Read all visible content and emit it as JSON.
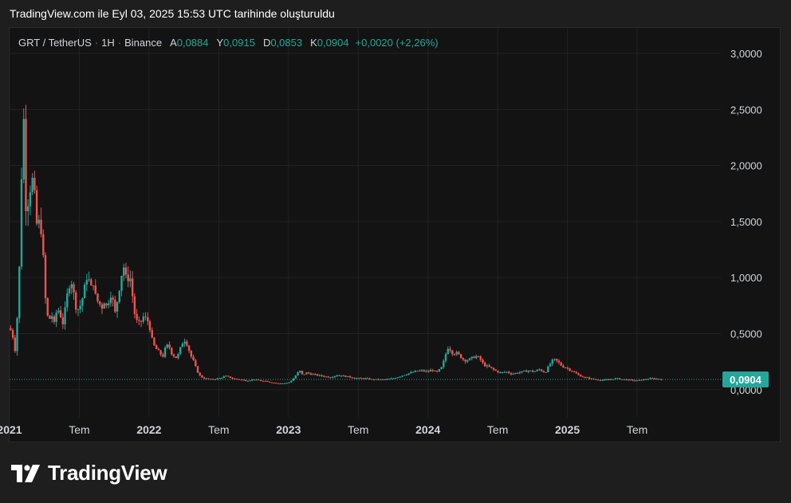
{
  "header": {
    "title": "TradingView.com ile Eyl 03, 2025 15:53 UTC tarihinde oluşturuldu"
  },
  "legend": {
    "symbol": "GRT / TetherUS",
    "interval": "1H",
    "exchange": "Binance",
    "open_label": "A",
    "open": "0,0884",
    "high_label": "Y",
    "high": "0,0915",
    "low_label": "D",
    "low": "0,0853",
    "close_label": "K",
    "close": "0,0904",
    "change": "+0,0020 (+2,26%)"
  },
  "footer": {
    "brand": "TradingView",
    "logo_icon": "tradingview-logo-icon"
  },
  "colors": {
    "up": "#26a69a",
    "down": "#ef5350",
    "background": "#131313",
    "grid": "#222222",
    "axis_text": "#d1d4dc"
  },
  "chart_data": {
    "type": "candlestick",
    "y_ticks": [
      "3,0000",
      "2,5000",
      "2,0000",
      "1,5000",
      "1,0000",
      "0,5000",
      "0,0000"
    ],
    "y_tick_values": [
      3.0,
      2.5,
      2.0,
      1.5,
      1.0,
      0.5,
      0.0
    ],
    "ylim": [
      -0.08,
      3.05
    ],
    "x_ticks": [
      {
        "label": "2021",
        "t": 2021.0,
        "bold": true
      },
      {
        "label": "Tem",
        "t": 2021.5,
        "bold": false
      },
      {
        "label": "2022",
        "t": 2022.0,
        "bold": true
      },
      {
        "label": "Tem",
        "t": 2022.5,
        "bold": false
      },
      {
        "label": "2023",
        "t": 2023.0,
        "bold": true
      },
      {
        "label": "Tem",
        "t": 2023.5,
        "bold": false
      },
      {
        "label": "2024",
        "t": 2024.0,
        "bold": true
      },
      {
        "label": "Tem",
        "t": 2024.5,
        "bold": false
      },
      {
        "label": "2025",
        "t": 2025.0,
        "bold": true
      },
      {
        "label": "Tem",
        "t": 2025.5,
        "bold": false
      }
    ],
    "xlim": [
      2021.0,
      2026.1
    ],
    "last_price": "0,0904",
    "last_price_value": 0.0904,
    "price_path": [
      [
        2021.0,
        0.55
      ],
      [
        2021.02,
        0.5
      ],
      [
        2021.04,
        0.35
      ],
      [
        2021.06,
        0.75
      ],
      [
        2021.08,
        1.4
      ],
      [
        2021.09,
        2.3
      ],
      [
        2021.1,
        2.5
      ],
      [
        2021.11,
        1.8
      ],
      [
        2021.12,
        1.6
      ],
      [
        2021.14,
        1.75
      ],
      [
        2021.16,
        1.9
      ],
      [
        2021.18,
        1.7
      ],
      [
        2021.2,
        1.4
      ],
      [
        2021.22,
        1.55
      ],
      [
        2021.24,
        1.2
      ],
      [
        2021.26,
        0.75
      ],
      [
        2021.28,
        0.6
      ],
      [
        2021.3,
        0.68
      ],
      [
        2021.32,
        0.58
      ],
      [
        2021.34,
        0.72
      ],
      [
        2021.36,
        0.7
      ],
      [
        2021.38,
        0.58
      ],
      [
        2021.4,
        0.72
      ],
      [
        2021.42,
        0.9
      ],
      [
        2021.44,
        1.0
      ],
      [
        2021.46,
        0.85
      ],
      [
        2021.48,
        0.72
      ],
      [
        2021.5,
        0.72
      ],
      [
        2021.53,
        0.85
      ],
      [
        2021.56,
        1.05
      ],
      [
        2021.58,
        0.88
      ],
      [
        2021.6,
        0.97
      ],
      [
        2021.62,
        0.8
      ],
      [
        2021.64,
        0.78
      ],
      [
        2021.66,
        0.73
      ],
      [
        2021.68,
        0.8
      ],
      [
        2021.7,
        0.72
      ],
      [
        2021.72,
        0.88
      ],
      [
        2021.74,
        0.8
      ],
      [
        2021.75,
        0.65
      ],
      [
        2021.76,
        0.7
      ],
      [
        2021.78,
        0.85
      ],
      [
        2021.8,
        1.02
      ],
      [
        2021.82,
        1.1
      ],
      [
        2021.84,
        0.95
      ],
      [
        2021.86,
        1.05
      ],
      [
        2021.88,
        0.85
      ],
      [
        2021.9,
        0.65
      ],
      [
        2021.92,
        0.58
      ],
      [
        2021.94,
        0.6
      ],
      [
        2021.96,
        0.65
      ],
      [
        2022.0,
        0.6
      ],
      [
        2022.02,
        0.45
      ],
      [
        2022.04,
        0.38
      ],
      [
        2022.06,
        0.35
      ],
      [
        2022.08,
        0.32
      ],
      [
        2022.1,
        0.3
      ],
      [
        2022.12,
        0.38
      ],
      [
        2022.14,
        0.4
      ],
      [
        2022.16,
        0.33
      ],
      [
        2022.18,
        0.3
      ],
      [
        2022.2,
        0.28
      ],
      [
        2022.22,
        0.35
      ],
      [
        2022.24,
        0.42
      ],
      [
        2022.26,
        0.45
      ],
      [
        2022.28,
        0.38
      ],
      [
        2022.3,
        0.3
      ],
      [
        2022.32,
        0.25
      ],
      [
        2022.34,
        0.18
      ],
      [
        2022.36,
        0.13
      ],
      [
        2022.38,
        0.11
      ],
      [
        2022.4,
        0.1
      ],
      [
        2022.45,
        0.09
      ],
      [
        2022.5,
        0.1
      ],
      [
        2022.55,
        0.12
      ],
      [
        2022.6,
        0.1
      ],
      [
        2022.65,
        0.09
      ],
      [
        2022.7,
        0.08
      ],
      [
        2022.75,
        0.09
      ],
      [
        2022.8,
        0.08
      ],
      [
        2022.85,
        0.07
      ],
      [
        2022.9,
        0.06
      ],
      [
        2022.95,
        0.055
      ],
      [
        2023.0,
        0.06
      ],
      [
        2023.03,
        0.09
      ],
      [
        2023.06,
        0.14
      ],
      [
        2023.08,
        0.17
      ],
      [
        2023.1,
        0.13
      ],
      [
        2023.13,
        0.15
      ],
      [
        2023.16,
        0.14
      ],
      [
        2023.2,
        0.13
      ],
      [
        2023.25,
        0.12
      ],
      [
        2023.3,
        0.11
      ],
      [
        2023.35,
        0.13
      ],
      [
        2023.4,
        0.12
      ],
      [
        2023.45,
        0.11
      ],
      [
        2023.5,
        0.1
      ],
      [
        2023.55,
        0.1
      ],
      [
        2023.6,
        0.09
      ],
      [
        2023.65,
        0.09
      ],
      [
        2023.7,
        0.09
      ],
      [
        2023.75,
        0.1
      ],
      [
        2023.8,
        0.12
      ],
      [
        2023.85,
        0.14
      ],
      [
        2023.9,
        0.16
      ],
      [
        2023.95,
        0.17
      ],
      [
        2024.0,
        0.16
      ],
      [
        2024.03,
        0.18
      ],
      [
        2024.06,
        0.15
      ],
      [
        2024.1,
        0.2
      ],
      [
        2024.12,
        0.28
      ],
      [
        2024.14,
        0.38
      ],
      [
        2024.16,
        0.36
      ],
      [
        2024.18,
        0.32
      ],
      [
        2024.2,
        0.33
      ],
      [
        2024.23,
        0.3
      ],
      [
        2024.26,
        0.26
      ],
      [
        2024.3,
        0.27
      ],
      [
        2024.34,
        0.3
      ],
      [
        2024.37,
        0.28
      ],
      [
        2024.4,
        0.22
      ],
      [
        2024.44,
        0.2
      ],
      [
        2024.48,
        0.17
      ],
      [
        2024.52,
        0.15
      ],
      [
        2024.56,
        0.16
      ],
      [
        2024.6,
        0.14
      ],
      [
        2024.64,
        0.15
      ],
      [
        2024.68,
        0.16
      ],
      [
        2024.72,
        0.17
      ],
      [
        2024.76,
        0.16
      ],
      [
        2024.8,
        0.18
      ],
      [
        2024.84,
        0.15
      ],
      [
        2024.87,
        0.22
      ],
      [
        2024.9,
        0.27
      ],
      [
        2024.93,
        0.25
      ],
      [
        2024.96,
        0.21
      ],
      [
        2025.0,
        0.19
      ],
      [
        2025.04,
        0.16
      ],
      [
        2025.08,
        0.13
      ],
      [
        2025.12,
        0.11
      ],
      [
        2025.16,
        0.1
      ],
      [
        2025.2,
        0.09
      ],
      [
        2025.25,
        0.085
      ],
      [
        2025.3,
        0.09
      ],
      [
        2025.35,
        0.1
      ],
      [
        2025.4,
        0.09
      ],
      [
        2025.45,
        0.085
      ],
      [
        2025.5,
        0.08
      ],
      [
        2025.55,
        0.09
      ],
      [
        2025.6,
        0.1
      ],
      [
        2025.65,
        0.095
      ],
      [
        2025.68,
        0.0904
      ]
    ]
  }
}
